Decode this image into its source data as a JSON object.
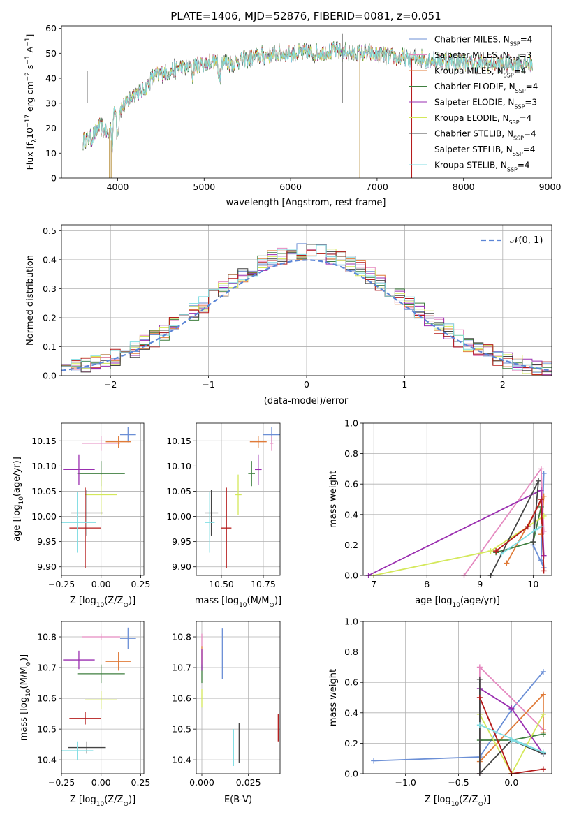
{
  "chart_data": [
    {
      "id": "spectrum",
      "type": "line",
      "title": "PLATE=1406, MJD=52876, FIBERID=0081, z=0.051",
      "xlabel": "wavelength [Angstrom, rest frame]",
      "ylabel": "Flux [f_λ10^-17 erg cm^-2 s^-1 A^-1]",
      "xlim": [
        3350,
        9020
      ],
      "ylim": [
        0,
        61
      ],
      "xticks": [
        4000,
        5000,
        6000,
        7000,
        8000,
        9000
      ],
      "yticks": [
        0,
        10,
        20,
        30,
        40,
        50,
        60
      ],
      "grid": false,
      "legend_position": "right",
      "continuum": [
        [
          3600,
          15
        ],
        [
          3700,
          16
        ],
        [
          3800,
          21
        ],
        [
          3900,
          17
        ],
        [
          3950,
          25
        ],
        [
          4000,
          27
        ],
        [
          4100,
          30
        ],
        [
          4200,
          34
        ],
        [
          4300,
          35
        ],
        [
          4400,
          40
        ],
        [
          4500,
          42
        ],
        [
          4700,
          44
        ],
        [
          4900,
          45
        ],
        [
          5100,
          47
        ],
        [
          5300,
          46
        ],
        [
          5500,
          48
        ],
        [
          5700,
          49
        ],
        [
          5900,
          50
        ],
        [
          6100,
          50
        ],
        [
          6300,
          50
        ],
        [
          6500,
          51
        ],
        [
          6700,
          50
        ],
        [
          6900,
          50
        ],
        [
          7100,
          49
        ],
        [
          7300,
          48
        ],
        [
          7500,
          48
        ],
        [
          7700,
          47
        ],
        [
          7900,
          47
        ],
        [
          8100,
          46
        ],
        [
          8300,
          46
        ],
        [
          8500,
          46
        ],
        [
          8700,
          46
        ],
        [
          8800,
          46
        ]
      ],
      "series": [
        {
          "name": "Chabrier MILES, N_SSP=4",
          "color": "#6b8fd6"
        },
        {
          "name": "Salpeter MILES, N_SSP=3",
          "color": "#e58ac0"
        },
        {
          "name": "Kroupa MILES, N_SSP=4",
          "color": "#e07b39"
        },
        {
          "name": "Chabrier ELODIE, N_SSP=4",
          "color": "#3f7f3f"
        },
        {
          "name": "Salpeter ELODIE, N_SSP=3",
          "color": "#9a2eb0"
        },
        {
          "name": "Kroupa ELODIE, N_SSP=4",
          "color": "#d4e85a"
        },
        {
          "name": "Chabrier STELIB, N_SSP=4",
          "color": "#444444"
        },
        {
          "name": "Salpeter STELIB, N_SSP=4",
          "color": "#b51b1b"
        },
        {
          "name": "Kroupa STELIB, N_SSP=4",
          "color": "#80dde3"
        }
      ]
    },
    {
      "id": "residuals",
      "type": "histogram",
      "xlabel": "(data-model)/error",
      "ylabel": "Normed distribution",
      "xlim": [
        -2.5,
        2.5
      ],
      "ylim": [
        0,
        0.52
      ],
      "xticks": [
        -2,
        -1,
        0,
        1,
        2
      ],
      "yticks": [
        0.0,
        0.1,
        0.2,
        0.3,
        0.4,
        0.5
      ],
      "grid": true,
      "legend": "𝒩(0, 1)",
      "legend_position": "top-right",
      "bin_width": 0.1
    },
    {
      "id": "age-vs-Z",
      "type": "scatter",
      "xlabel": "Z [log10(Z/Z⊙)]",
      "ylabel": "age  [log10(age/yr)]",
      "xlim": [
        -0.25,
        0.27
      ],
      "ylim": [
        9.883,
        10.185
      ],
      "xticks": [
        -0.25,
        0.0,
        0.25
      ],
      "yticks": [
        9.9,
        9.95,
        10.0,
        10.05,
        10.1,
        10.15
      ],
      "grid": true,
      "points": [
        {
          "x": 0.17,
          "y": 10.162,
          "xerr": 0.05,
          "yerr": 0.015
        },
        {
          "x": 0.0,
          "y": 10.145,
          "xerr": 0.12,
          "yerr": 0.015
        },
        {
          "x": 0.11,
          "y": 10.148,
          "xerr": 0.08,
          "yerr": 0.012
        },
        {
          "x": 0.0,
          "y": 10.085,
          "xerr": 0.15,
          "yerr": 0.025
        },
        {
          "x": -0.14,
          "y": 10.093,
          "xerr": 0.1,
          "yerr": 0.03
        },
        {
          "x": 0.0,
          "y": 10.043,
          "xerr": 0.1,
          "yerr": 0.04
        },
        {
          "x": -0.09,
          "y": 10.007,
          "xerr": 0.1,
          "yerr": 0.045
        },
        {
          "x": -0.1,
          "y": 9.977,
          "xerr": 0.1,
          "yerr": 0.08
        },
        {
          "x": -0.15,
          "y": 9.988,
          "xerr": 0.12,
          "yerr": 0.06
        }
      ]
    },
    {
      "id": "age-vs-mass",
      "type": "scatter",
      "xlabel": "mass [log10(M/M⊙)]",
      "ylabel": "",
      "xlim": [
        10.35,
        10.85
      ],
      "ylim": [
        9.883,
        10.185
      ],
      "xticks": [
        10.5,
        10.75
      ],
      "yticks": [
        9.9,
        9.95,
        10.0,
        10.05,
        10.1,
        10.15
      ],
      "grid": true,
      "points": [
        {
          "x": 10.8,
          "y": 10.162,
          "xerr": 0.05,
          "yerr": 0.015
        },
        {
          "x": 10.8,
          "y": 10.145,
          "xerr": 0.01,
          "yerr": 0.015
        },
        {
          "x": 10.72,
          "y": 10.148,
          "xerr": 0.05,
          "yerr": 0.012
        },
        {
          "x": 10.68,
          "y": 10.085,
          "xerr": 0.02,
          "yerr": 0.025
        },
        {
          "x": 10.72,
          "y": 10.093,
          "xerr": 0.02,
          "yerr": 0.03
        },
        {
          "x": 10.6,
          "y": 10.043,
          "xerr": 0.02,
          "yerr": 0.04
        },
        {
          "x": 10.44,
          "y": 10.007,
          "xerr": 0.04,
          "yerr": 0.045
        },
        {
          "x": 10.53,
          "y": 9.977,
          "xerr": 0.03,
          "yerr": 0.08
        },
        {
          "x": 10.43,
          "y": 9.988,
          "xerr": 0.03,
          "yerr": 0.06
        }
      ]
    },
    {
      "id": "mass-weight-vs-age",
      "type": "line",
      "xlabel": "age  [log10(age/yr)]",
      "ylabel": "mass weight",
      "xlim": [
        6.8,
        10.35
      ],
      "ylim": [
        0,
        1
      ],
      "xticks": [
        7,
        8,
        9,
        10
      ],
      "yticks": [
        0.0,
        0.2,
        0.4,
        0.6,
        0.8,
        1.0
      ],
      "grid": true,
      "series": [
        {
          "points": [
            [
              10.2,
              0.67
            ],
            [
              10.15,
              0.1
            ],
            [
              10.2,
              0.05
            ],
            [
              10.0,
              0.2
            ]
          ]
        },
        {
          "points": [
            [
              8.7,
              0.0
            ],
            [
              10.15,
              0.7
            ],
            [
              10.2,
              0.29
            ]
          ]
        },
        {
          "points": [
            [
              9.5,
              0.08
            ],
            [
              10.2,
              0.52
            ],
            [
              10.15,
              0.27
            ]
          ]
        },
        {
          "points": [
            [
              9.3,
              0.15
            ],
            [
              10.0,
              0.22
            ],
            [
              10.15,
              0.45
            ]
          ]
        },
        {
          "points": [
            [
              6.9,
              0.0
            ],
            [
              10.15,
              0.56
            ],
            [
              10.2,
              0.13
            ]
          ]
        },
        {
          "points": [
            [
              7.0,
              0.0
            ],
            [
              9.2,
              0.16
            ],
            [
              10.2,
              0.39
            ]
          ]
        },
        {
          "points": [
            [
              9.2,
              0.0
            ],
            [
              10.1,
              0.62
            ],
            [
              10.0,
              0.22
            ]
          ]
        },
        {
          "points": [
            [
              9.3,
              0.16
            ],
            [
              9.9,
              0.32
            ],
            [
              10.15,
              0.5
            ],
            [
              10.2,
              0.03
            ]
          ]
        },
        {
          "points": [
            [
              9.4,
              0.14
            ],
            [
              10.05,
              0.3
            ],
            [
              10.15,
              0.32
            ]
          ]
        }
      ]
    },
    {
      "id": "mass-vs-Z",
      "type": "scatter",
      "xlabel": "Z [log10(Z/Z⊙)]",
      "ylabel": "mass [log10(M/M⊙)]",
      "xlim": [
        -0.25,
        0.27
      ],
      "ylim": [
        10.355,
        10.85
      ],
      "xticks": [
        -0.25,
        0.0,
        0.25
      ],
      "yticks": [
        10.4,
        10.5,
        10.6,
        10.7,
        10.8
      ],
      "grid": true,
      "points": [
        {
          "x": 0.17,
          "y": 10.795,
          "xerr": 0.05,
          "yerr": 0.035
        },
        {
          "x": 0.0,
          "y": 10.8,
          "xerr": 0.12,
          "yerr": 0.01
        },
        {
          "x": 0.11,
          "y": 10.72,
          "xerr": 0.08,
          "yerr": 0.03
        },
        {
          "x": 0.0,
          "y": 10.68,
          "xerr": 0.15,
          "yerr": 0.03
        },
        {
          "x": -0.14,
          "y": 10.725,
          "xerr": 0.1,
          "yerr": 0.03
        },
        {
          "x": 0.0,
          "y": 10.595,
          "xerr": 0.1,
          "yerr": 0.03
        },
        {
          "x": -0.09,
          "y": 10.44,
          "xerr": 0.12,
          "yerr": 0.02
        },
        {
          "x": -0.1,
          "y": 10.535,
          "xerr": 0.1,
          "yerr": 0.02
        },
        {
          "x": -0.15,
          "y": 10.43,
          "xerr": 0.1,
          "yerr": 0.03
        }
      ]
    },
    {
      "id": "mass-vs-EBV",
      "type": "scatter",
      "xlabel": "E(B-V)",
      "ylabel": "",
      "xlim": [
        -0.003,
        0.042
      ],
      "ylim": [
        10.355,
        10.85
      ],
      "xticks": [
        0.0,
        0.025
      ],
      "yticks": [
        10.4,
        10.5,
        10.6,
        10.7,
        10.8
      ],
      "grid": true,
      "points": [
        {
          "x": 0.011,
          "y": 10.745,
          "yerr": 0.082
        },
        {
          "x": 0.0,
          "y": 10.79,
          "yerr": 0.02
        },
        {
          "x": 0.0,
          "y": 10.74,
          "yerr": 0.03
        },
        {
          "x": 0.0,
          "y": 10.68,
          "yerr": 0.03
        },
        {
          "x": 0.0,
          "y": 10.725,
          "yerr": 0.035
        },
        {
          "x": 0.0,
          "y": 10.6,
          "yerr": 0.03
        },
        {
          "x": 0.02,
          "y": 10.455,
          "yerr": 0.065
        },
        {
          "x": 0.041,
          "y": 10.505,
          "yerr": 0.045
        },
        {
          "x": 0.017,
          "y": 10.44,
          "yerr": 0.06
        }
      ]
    },
    {
      "id": "mass-weight-vs-Z",
      "type": "line",
      "xlabel": "Z [log10(Z/Z⊙)]",
      "ylabel": "mass weight",
      "xlim": [
        -1.4,
        0.38
      ],
      "ylim": [
        0,
        1
      ],
      "xticks": [
        -1.0,
        -0.5,
        0.0
      ],
      "yticks": [
        0.0,
        0.2,
        0.4,
        0.6,
        0.8,
        1.0
      ],
      "grid": true,
      "series": [
        {
          "points": [
            [
              -1.3,
              0.085
            ],
            [
              -0.3,
              0.11
            ],
            [
              0.0,
              0.42
            ],
            [
              0.3,
              0.67
            ]
          ]
        },
        {
          "points": [
            [
              -0.3,
              0.0
            ],
            [
              -0.3,
              0.7
            ],
            [
              0.3,
              0.29
            ]
          ]
        },
        {
          "points": [
            [
              -0.3,
              0.08
            ],
            [
              0.3,
              0.52
            ],
            [
              0.3,
              0.27
            ]
          ]
        },
        {
          "points": [
            [
              -0.3,
              0.22
            ],
            [
              0.0,
              0.22
            ],
            [
              0.3,
              0.26
            ]
          ]
        },
        {
          "points": [
            [
              -0.3,
              0.56
            ],
            [
              0.0,
              0.43
            ],
            [
              0.3,
              0.13
            ]
          ]
        },
        {
          "points": [
            [
              -0.3,
              0.39
            ],
            [
              0.0,
              0.0
            ],
            [
              0.3,
              0.39
            ]
          ]
        },
        {
          "points": [
            [
              -0.3,
              0.62
            ],
            [
              -0.3,
              0.0
            ],
            [
              0.0,
              0.22
            ],
            [
              0.3,
              0.13
            ]
          ]
        },
        {
          "points": [
            [
              -0.3,
              0.5
            ],
            [
              0.0,
              0.0
            ],
            [
              0.3,
              0.03
            ]
          ]
        },
        {
          "points": [
            [
              -0.3,
              0.32
            ],
            [
              0.3,
              0.14
            ],
            [
              0.0,
              0.22
            ]
          ]
        }
      ]
    }
  ]
}
